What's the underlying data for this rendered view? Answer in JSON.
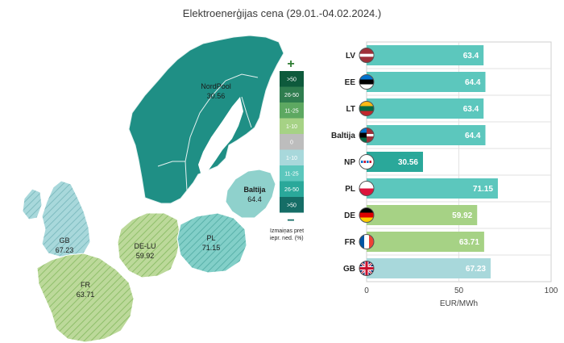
{
  "title": "Elektroenerģijas cena (29.01.-04.02.2024.)",
  "colors": {
    "nordpool": "#1f8f85",
    "baltic": "#8fd1cc",
    "pl": "#7fccc5",
    "dark_teal": "#2aa89a",
    "light_teal": "#5cc7bd",
    "pale_blue": "#a8d8db",
    "light_green": "#a6d285",
    "hatch_green": "#bcd99a"
  },
  "map": {
    "labels": [
      {
        "id": "nordpool",
        "name": "NordPool",
        "value": "30.56"
      },
      {
        "id": "baltija",
        "name": "Baltija",
        "value": "64.4"
      },
      {
        "id": "gb",
        "name": "GB",
        "value": "67.23"
      },
      {
        "id": "delu",
        "name": "DE-LU",
        "value": "59.92"
      },
      {
        "id": "pl",
        "name": "PL",
        "value": "71.15"
      },
      {
        "id": "fr",
        "name": "FR",
        "value": "63.71"
      }
    ],
    "legend": {
      "plus": "+",
      "minus": "−",
      "items": [
        {
          "label": ">50",
          "color": "#0e5a3c",
          "text_color": "#ffffff"
        },
        {
          "label": "26-50",
          "color": "#2f7d4f",
          "text_color": "#ffffff"
        },
        {
          "label": "11-25",
          "color": "#5da861",
          "text_color": "#ffffff"
        },
        {
          "label": "1-10",
          "color": "#a6d285",
          "text_color": "#ffffff"
        },
        {
          "label": "0",
          "color": "#bdbdbd",
          "text_color": "#ffffff"
        },
        {
          "label": "1-10",
          "color": "#a8d8db",
          "text_color": "#ffffff"
        },
        {
          "label": "11-25",
          "color": "#5cc7bd",
          "text_color": "#ffffff"
        },
        {
          "label": "26-50",
          "color": "#2aa89a",
          "text_color": "#ffffff"
        },
        {
          "label": ">50",
          "color": "#156d66",
          "text_color": "#ffffff"
        }
      ],
      "note_line1": "Izmaiņas pret",
      "note_line2": "iepr. ned. (%)"
    }
  },
  "chart_data": {
    "type": "bar",
    "orientation": "horizontal",
    "categories": [
      "LV",
      "EE",
      "LT",
      "Baltija",
      "NP",
      "PL",
      "DE",
      "FR",
      "GB"
    ],
    "values": [
      63.4,
      64.4,
      63.4,
      64.4,
      30.56,
      71.15,
      59.92,
      63.71,
      67.23
    ],
    "value_labels": [
      "63.4",
      "64.4",
      "63.4",
      "64.4",
      "30.56",
      "71.15",
      "59.92",
      "63.71",
      "67.23"
    ],
    "bar_colors": [
      "#5cc7bd",
      "#5cc7bd",
      "#5cc7bd",
      "#5cc7bd",
      "#2aa89a",
      "#5cc7bd",
      "#a6d285",
      "#a6d285",
      "#a8d8db"
    ],
    "flag_icons": [
      "flag-lv-icon",
      "flag-ee-icon",
      "flag-lt-icon",
      "flag-baltija-icon",
      "flag-np-icon",
      "flag-pl-icon",
      "flag-de-icon",
      "flag-fr-icon",
      "flag-gb-icon"
    ],
    "xlabel": "EUR/MWh",
    "ylabel": "",
    "xlim": [
      0,
      100
    ],
    "xticks": [
      "0",
      "50",
      "100"
    ],
    "grid": true
  }
}
